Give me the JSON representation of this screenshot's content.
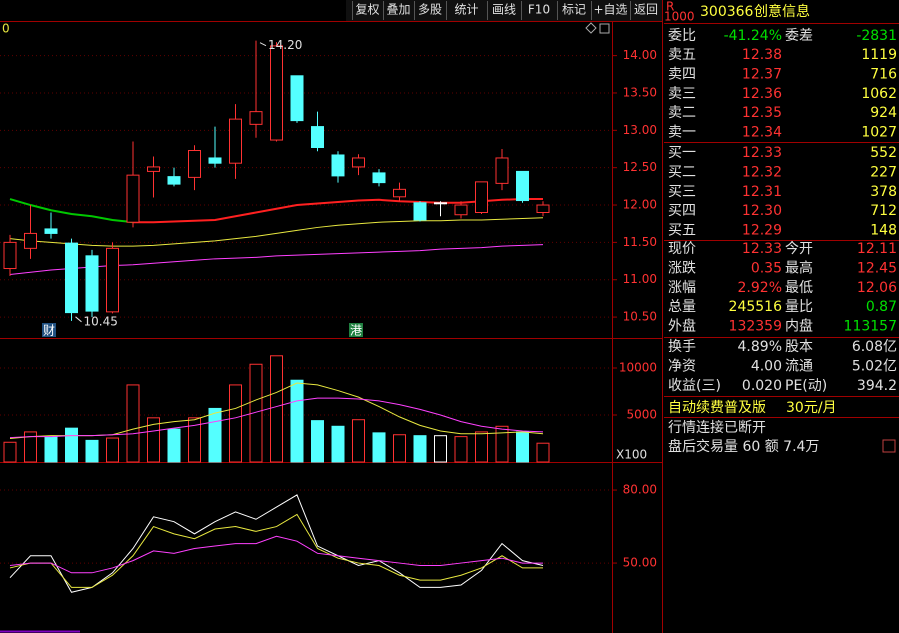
{
  "toolbar": [
    "复权",
    "叠加",
    "多股",
    "统计",
    "画线",
    "F10",
    "标记",
    "+自选",
    "返回"
  ],
  "corner_label": "0",
  "markers": [
    "财",
    "港"
  ],
  "chart_data": [
    {
      "type": "candlestick",
      "open": [
        11.15,
        11.42,
        11.68,
        11.49,
        11.32,
        10.57,
        11.77,
        12.45,
        12.38,
        12.37,
        12.63,
        12.56,
        13.08,
        12.87,
        13.73,
        13.05,
        12.67,
        12.51,
        12.43,
        12.11,
        12.03,
        12.03,
        11.87,
        11.9,
        12.29,
        12.45,
        11.9
      ],
      "high": [
        11.6,
        12.0,
        11.9,
        11.55,
        11.4,
        11.5,
        12.85,
        12.65,
        12.5,
        12.8,
        13.05,
        13.35,
        14.2,
        14.18,
        13.73,
        13.25,
        12.72,
        12.68,
        12.48,
        12.3,
        12.05,
        12.05,
        12.05,
        12.31,
        12.75,
        12.45,
        12.05
      ],
      "low": [
        11.05,
        11.28,
        11.55,
        10.45,
        10.5,
        10.55,
        11.7,
        12.1,
        12.25,
        12.2,
        12.5,
        12.35,
        12.9,
        12.85,
        13.1,
        12.72,
        12.3,
        12.4,
        12.25,
        12.05,
        11.78,
        11.85,
        11.82,
        11.88,
        12.2,
        12.03,
        11.85
      ],
      "close": [
        11.5,
        11.62,
        11.62,
        10.56,
        10.58,
        11.42,
        12.4,
        12.51,
        12.28,
        12.73,
        12.56,
        13.15,
        13.25,
        14.13,
        13.13,
        12.77,
        12.39,
        12.63,
        12.3,
        12.21,
        11.8,
        12.03,
        12.0,
        12.31,
        12.63,
        12.06,
        12.0
      ],
      "up_color": "#ff3232",
      "down_color": "#54ffff",
      "flat_color": "#ffffff",
      "annotations": [
        "14.20",
        "10.45"
      ],
      "series": [
        {
          "color": "#00c800",
          "values": [
            12.08,
            12.0,
            11.93,
            11.88,
            11.85,
            11.8,
            11.77,
            null,
            null,
            null,
            null,
            null,
            null,
            null,
            null,
            null,
            null,
            null,
            null,
            null,
            null,
            null,
            null,
            null,
            null,
            null,
            null
          ]
        },
        {
          "color": "#ff2020",
          "values": [
            null,
            null,
            null,
            null,
            null,
            null,
            11.77,
            11.77,
            11.78,
            11.79,
            11.8,
            11.85,
            11.9,
            11.95,
            12.0,
            12.02,
            12.04,
            12.06,
            12.07,
            12.05,
            12.04,
            12.03,
            12.03,
            12.05,
            12.07,
            12.08,
            12.08
          ]
        },
        {
          "color": "#e8e840",
          "values": [
            11.55,
            11.52,
            11.5,
            11.48,
            11.46,
            11.45,
            11.45,
            11.46,
            11.48,
            11.5,
            11.52,
            11.55,
            11.58,
            11.62,
            11.66,
            11.7,
            11.73,
            11.75,
            11.77,
            11.78,
            11.79,
            11.79,
            11.8,
            11.8,
            11.81,
            11.82,
            11.83
          ]
        },
        {
          "color": "#ff40ff",
          "values": [
            11.07,
            11.1,
            11.13,
            11.15,
            11.17,
            11.19,
            11.2,
            11.22,
            11.24,
            11.26,
            11.28,
            11.29,
            11.3,
            11.32,
            11.33,
            11.34,
            11.35,
            11.36,
            11.37,
            11.38,
            11.39,
            11.41,
            11.42,
            11.43,
            11.45,
            11.46,
            11.47
          ]
        }
      ],
      "ylim": [
        10.22,
        14.45
      ],
      "yticks": [
        {
          "value": 10.5,
          "label": "10.50"
        },
        {
          "value": 11,
          "label": "11.00"
        },
        {
          "value": 11.5,
          "label": "11.50"
        },
        {
          "value": 12,
          "label": "12.00"
        },
        {
          "value": 12.5,
          "label": "12.50"
        },
        {
          "value": 13,
          "label": "13.00"
        },
        {
          "value": 13.5,
          "label": "13.50"
        },
        {
          "value": 14,
          "label": "14.00"
        }
      ],
      "grid": true
    },
    {
      "type": "bar",
      "values": [
        2100,
        3200,
        2650,
        3600,
        2300,
        2550,
        8200,
        4700,
        3500,
        4700,
        5700,
        8200,
        10400,
        11300,
        8700,
        4400,
        3800,
        4500,
        3100,
        2900,
        2800,
        2800,
        2700,
        3200,
        3800,
        3200,
        2000
      ],
      "unit_label": "X100",
      "series": [
        {
          "color": "#e8e840",
          "values": [
            2500,
            2700,
            2800,
            2800,
            2800,
            2900,
            3500,
            4000,
            4300,
            4500,
            5200,
            5700,
            6600,
            7400,
            8400,
            8200,
            7600,
            6900,
            5900,
            4800,
            3900,
            3300,
            3000,
            3000,
            3100,
            3200,
            3000
          ]
        },
        {
          "color": "#ff40ff",
          "values": [
            2600,
            2700,
            2700,
            2800,
            2800,
            2900,
            3000,
            3300,
            3600,
            3900,
            4300,
            4700,
            5300,
            5900,
            6500,
            6800,
            6800,
            6700,
            6500,
            6100,
            5600,
            5000,
            4300,
            3800,
            3500,
            3300,
            3200
          ]
        }
      ],
      "ylim": [
        0,
        12980
      ],
      "yticks": [
        5000,
        10000
      ],
      "grid": true
    },
    {
      "type": "line",
      "series": [
        {
          "color": "#ffffff",
          "values": [
            44,
            53,
            53,
            38,
            40,
            46,
            56,
            69,
            67,
            62,
            67,
            71,
            68,
            73,
            78,
            57,
            53,
            49,
            51,
            46,
            40,
            40,
            41,
            47,
            58,
            51,
            49
          ]
        },
        {
          "color": "#e8e840",
          "values": [
            48,
            50,
            50,
            40,
            40,
            45,
            53,
            65,
            62,
            60,
            64,
            65,
            63,
            65,
            70,
            56,
            52,
            50,
            49,
            45,
            43,
            43,
            45,
            48,
            53,
            48,
            48
          ]
        },
        {
          "color": "#ff40ff",
          "values": [
            49,
            50,
            50,
            46,
            46,
            48,
            51,
            55,
            54,
            56,
            57,
            58,
            58,
            61,
            59,
            54,
            53,
            52,
            51,
            50,
            49,
            49,
            50,
            51,
            52,
            50,
            50
          ]
        }
      ],
      "ylim": [
        22.5,
        90.7
      ],
      "yticks": [
        {
          "value": 50,
          "label": "50.00"
        },
        {
          "value": 80,
          "label": "80.00"
        }
      ],
      "grid": true
    }
  ],
  "quote": {
    "badge": "R",
    "badge_sub": "1000",
    "code": "300366",
    "name": "创意信息",
    "ratio": {
      "label": "委比",
      "value": "-41.24%",
      "label2": "委差",
      "value2": "-2831",
      "color": "#00e000",
      "color2": "#00e000"
    },
    "asks": [
      {
        "label": "卖五",
        "price": "12.38",
        "volume": "1119"
      },
      {
        "label": "卖四",
        "price": "12.37",
        "volume": "716"
      },
      {
        "label": "卖三",
        "price": "12.36",
        "volume": "1062"
      },
      {
        "label": "卖二",
        "price": "12.35",
        "volume": "924"
      },
      {
        "label": "卖一",
        "price": "12.34",
        "volume": "1027"
      }
    ],
    "bids": [
      {
        "label": "买一",
        "price": "12.33",
        "volume": "552"
      },
      {
        "label": "买二",
        "price": "12.32",
        "volume": "227"
      },
      {
        "label": "买三",
        "price": "12.31",
        "volume": "378"
      },
      {
        "label": "买四",
        "price": "12.30",
        "volume": "712"
      },
      {
        "label": "买五",
        "price": "12.29",
        "volume": "148"
      }
    ],
    "price_color": "#ff3232",
    "volume_color": "#ffff40",
    "stats": [
      {
        "label": "现价",
        "value": "12.33",
        "label2": "今开",
        "value2": "12.11",
        "color": "#ff3232",
        "color2": "#ff3232"
      },
      {
        "label": "涨跌",
        "value": "0.35",
        "label2": "最高",
        "value2": "12.45",
        "color": "#ff3232",
        "color2": "#ff3232"
      },
      {
        "label": "涨幅",
        "value": "2.92%",
        "label2": "最低",
        "value2": "12.06",
        "color": "#ff3232",
        "color2": "#ff3232"
      },
      {
        "label": "总量",
        "value": "245516",
        "label2": "量比",
        "value2": "0.87",
        "color": "#ffff40",
        "color2": "#00e000"
      },
      {
        "label": "外盘",
        "value": "132359",
        "label2": "内盘",
        "value2": "113157",
        "color": "#ff3232",
        "color2": "#00e000"
      }
    ],
    "finance": [
      {
        "label": "换手",
        "value": "4.89%",
        "label2": "股本",
        "value2": "6.08亿",
        "color": "#e0e0e0",
        "color2": "#e0e0e0"
      },
      {
        "label": "净资",
        "value": "4.00",
        "label2": "流通",
        "value2": "5.02亿",
        "color": "#e0e0e0",
        "color2": "#e0e0e0"
      },
      {
        "label": "收益(三)",
        "value": "0.020",
        "label2": "PE(动)",
        "value2": "394.2",
        "color": "#e0e0e0",
        "color2": "#e0e0e0"
      }
    ],
    "promo": "自动续费普及版",
    "promo_price": "30元/月",
    "status": "行情连接已断开",
    "after_hours": "盘后交易量 60 额 7.4万"
  }
}
